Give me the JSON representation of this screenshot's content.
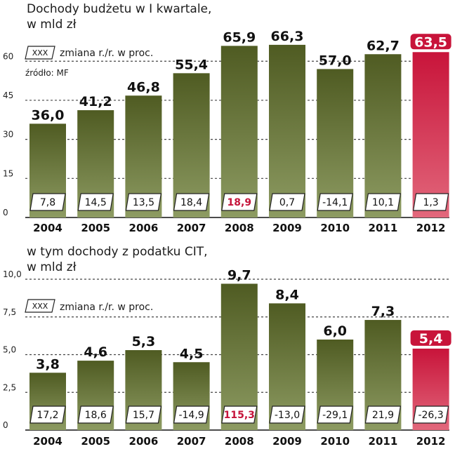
{
  "chart_data": [
    {
      "type": "bar",
      "title_line1": "Dochody budżetu w I kwartale,",
      "title_line2": "w mld zł",
      "legend_box": "XXX",
      "legend_text": "zmiana r./r. w proc.",
      "source": "źródło: MF",
      "categories": [
        "2004",
        "2005",
        "2006",
        "2007",
        "2008",
        "2009",
        "2010",
        "2011",
        "2012"
      ],
      "value_labels": [
        "36,0",
        "41,2",
        "46,8",
        "55,4",
        "65,9",
        "66,3",
        "57,0",
        "62,7",
        "63,5"
      ],
      "values": [
        36.0,
        41.2,
        46.8,
        55.4,
        65.9,
        66.3,
        57.0,
        62.7,
        63.5
      ],
      "changes": [
        "7,8",
        "14,5",
        "13,5",
        "18,4",
        "18,9",
        "0,7",
        "-14,1",
        "10,1",
        "1,3"
      ],
      "highlight_bar_index": 8,
      "highlight_change_index": 4,
      "yticks": [
        "0",
        "15",
        "30",
        "45",
        "60"
      ],
      "ytick_values": [
        0,
        15,
        30,
        45,
        60
      ],
      "ylim": [
        0,
        66
      ]
    },
    {
      "type": "bar",
      "title_line1": "w tym dochody z podatku CIT,",
      "title_line2": "w mld zł",
      "legend_box": "XXX",
      "legend_text": "zmiana r./r. w proc.",
      "categories": [
        "2004",
        "2005",
        "2006",
        "2007",
        "2008",
        "2009",
        "2010",
        "2011",
        "2012"
      ],
      "value_labels": [
        "3,8",
        "4,6",
        "5,3",
        "4,5",
        "9,7",
        "8,4",
        "6,0",
        "7,3",
        "5,4"
      ],
      "values": [
        3.8,
        4.6,
        5.3,
        4.5,
        9.7,
        8.4,
        6.0,
        7.3,
        5.4
      ],
      "changes": [
        "17,2",
        "18,6",
        "15,7",
        "-14,9",
        "115,3",
        "-13,0",
        "-29,1",
        "21,9",
        "-26,3"
      ],
      "highlight_bar_index": 8,
      "highlight_change_index": 4,
      "yticks": [
        "0",
        "2,5",
        "5,0",
        "7,5",
        "10,0"
      ],
      "ytick_values": [
        0,
        2.5,
        5.0,
        7.5,
        10.0
      ],
      "ylim": [
        0,
        10
      ]
    }
  ],
  "colors": {
    "bar_top": "#4f5b22",
    "bar_bottom": "#8d9b62",
    "highlight_top": "#c8143a",
    "highlight_bottom": "#e2687c",
    "highlight_text": "#c5143a",
    "grid": "#444444"
  }
}
